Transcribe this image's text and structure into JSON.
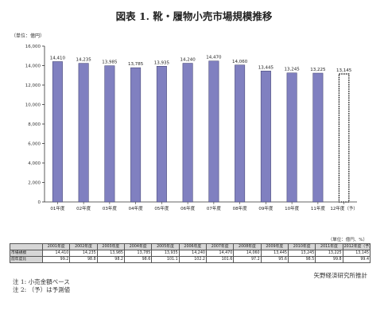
{
  "title": "図表 1. 靴・履物小売市場規模推移",
  "unit_label": "（単位：億円）",
  "chart_data": {
    "type": "bar",
    "categories": [
      "01年度",
      "02年度",
      "03年度",
      "04年度",
      "05年度",
      "06年度",
      "07年度",
      "08年度",
      "09年度",
      "10年度",
      "11年度",
      "12年度（予）"
    ],
    "values": [
      14410,
      14235,
      13985,
      13785,
      13935,
      14240,
      14470,
      14060,
      13445,
      13245,
      13225,
      13145
    ],
    "value_labels": [
      "14,410",
      "14,235",
      "13,985",
      "13,785",
      "13,935",
      "14,240",
      "14,470",
      "14,060",
      "13,445",
      "13,245",
      "13,225",
      "13,145"
    ],
    "forecast_index": 11,
    "ylim": [
      0,
      16000
    ],
    "yticks": [
      0,
      2000,
      4000,
      6000,
      8000,
      10000,
      12000,
      14000,
      16000
    ],
    "ytick_labels": [
      "0",
      "2,000",
      "4,000",
      "6,000",
      "8,000",
      "10,000",
      "12,000",
      "14,000",
      "16,000"
    ],
    "bar_color": "#8080c0",
    "title": "",
    "xlabel": "",
    "ylabel": "",
    "grid": false
  },
  "table": {
    "unit": "（単位：億円、%）",
    "headers": [
      "2001年度",
      "2002年度",
      "2003年度",
      "2004年度",
      "2005年度",
      "2006年度",
      "2007年度",
      "2008年度",
      "2009年度",
      "2010年度",
      "2011年度",
      "2012年度（予）"
    ],
    "rows": [
      {
        "label": "市場規模",
        "values": [
          "14,410",
          "14,235",
          "13,985",
          "13,785",
          "13,935",
          "14,240",
          "14,470",
          "14,060",
          "13,445",
          "13,245",
          "13,225",
          "13,145"
        ]
      },
      {
        "label": "前年度比",
        "values": [
          "99.2",
          "98.8",
          "98.2",
          "98.6",
          "101.1",
          "102.2",
          "101.6",
          "97.2",
          "95.6",
          "98.5",
          "99.8",
          "99.4"
        ]
      }
    ]
  },
  "source": "矢野経済研究所推計",
  "notes": [
    "注 1: 小売金額ベース",
    "注 2: （予）は予測値"
  ]
}
